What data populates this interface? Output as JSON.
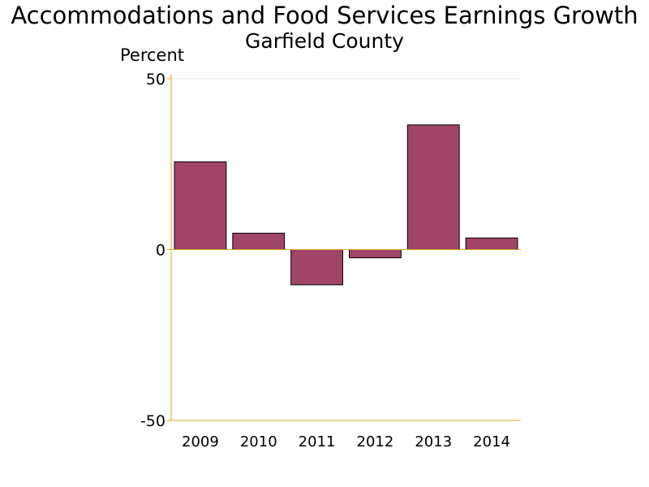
{
  "chart_data": {
    "type": "bar",
    "title": "Accommodations and Food Services Earnings Growth",
    "subtitle": "Garfield County",
    "ylabel": "Percent",
    "xlabel": "",
    "categories": [
      "2009",
      "2010",
      "2011",
      "2012",
      "2013",
      "2014"
    ],
    "values": [
      25.7,
      4.8,
      -10.3,
      -2.4,
      36.5,
      3.4
    ],
    "ylim": [
      -50,
      50
    ],
    "yticks": [
      "50",
      "0",
      "-50"
    ],
    "ytick_values": [
      50,
      0,
      -50
    ],
    "grid": "horizontal at top tick",
    "legend": "none",
    "colors": {
      "bar_fill": "#a04468",
      "bar_stroke": "#000000",
      "axis": "#e0a526",
      "grid": "#e6e6e6"
    }
  }
}
